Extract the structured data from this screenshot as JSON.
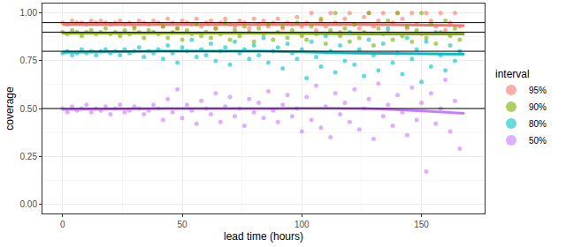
{
  "chart_data": {
    "type": "scatter",
    "xlabel": "lead time (hours)",
    "ylabel": "coverage",
    "legend_title": "interval",
    "legend": "right",
    "grid": true,
    "marker": "circle",
    "xlim": [
      -8.4,
      176.4
    ],
    "xticks": [
      0,
      50,
      100,
      150
    ],
    "ylim": [
      -0.05,
      1.05
    ],
    "yticks": [
      {
        "value": 0,
        "label": "0.00"
      },
      {
        "value": 0.25,
        "label": "0.25"
      },
      {
        "value": 0.5,
        "label": "0.50"
      },
      {
        "value": 0.75,
        "label": "0.75"
      },
      {
        "value": 1,
        "label": "1.00"
      }
    ],
    "hlines": [
      0.95,
      0.9,
      0.8,
      0.5
    ],
    "x": [
      0,
      2,
      4,
      6,
      8,
      10,
      12,
      14,
      16,
      18,
      20,
      22,
      24,
      26,
      28,
      30,
      32,
      34,
      36,
      38,
      40,
      42,
      44,
      46,
      48,
      50,
      52,
      54,
      56,
      58,
      60,
      62,
      64,
      66,
      68,
      70,
      72,
      74,
      76,
      78,
      80,
      82,
      84,
      86,
      88,
      90,
      92,
      94,
      96,
      98,
      100,
      102,
      104,
      106,
      108,
      110,
      112,
      114,
      116,
      118,
      120,
      122,
      124,
      126,
      128,
      130,
      132,
      134,
      136,
      138,
      140,
      142,
      144,
      146,
      148,
      150,
      152,
      154,
      156,
      158,
      160,
      162,
      164,
      166
    ],
    "smooth_x": [
      0,
      42,
      84,
      126,
      168
    ],
    "series": [
      {
        "name": "95%",
        "color": "#F8766D",
        "values": [
          0.95,
          0.94,
          0.96,
          0.95,
          0.95,
          0.94,
          0.96,
          0.95,
          0.96,
          0.95,
          0.94,
          0.95,
          0.96,
          0.94,
          0.95,
          0.93,
          0.96,
          0.95,
          0.94,
          0.96,
          0.95,
          0.93,
          0.97,
          0.95,
          0.92,
          0.96,
          0.95,
          0.94,
          0.97,
          0.93,
          0.95,
          0.96,
          0.92,
          0.95,
          0.97,
          0.94,
          0.93,
          0.96,
          0.95,
          0.92,
          0.97,
          0.94,
          0.96,
          0.93,
          0.95,
          0.97,
          0.92,
          0.95,
          0.94,
          0.98,
          0.93,
          0.95,
          1.0,
          0.91,
          0.96,
          0.93,
          1.0,
          0.95,
          0.9,
          0.97,
          1.0,
          0.94,
          0.92,
          0.98,
          1.0,
          0.93,
          0.96,
          1.0,
          0.9,
          0.95,
          1.0,
          0.97,
          0.92,
          1.0,
          0.94,
          0.89,
          1.0,
          0.96,
          0.93,
          1.0,
          0.91,
          0.95,
          1.0,
          0.93
        ],
        "smooth": [
          0.94,
          0.94,
          0.94,
          0.94,
          0.935
        ]
      },
      {
        "name": "90%",
        "color": "#7CAE00",
        "values": [
          0.9,
          0.89,
          0.91,
          0.9,
          0.88,
          0.9,
          0.91,
          0.89,
          0.9,
          0.92,
          0.89,
          0.9,
          0.88,
          0.91,
          0.89,
          0.92,
          0.9,
          0.87,
          0.91,
          0.9,
          0.89,
          0.93,
          0.87,
          0.9,
          0.92,
          0.86,
          0.91,
          0.89,
          0.94,
          0.88,
          0.9,
          0.87,
          0.92,
          0.89,
          0.95,
          0.86,
          0.91,
          0.88,
          0.93,
          0.9,
          0.85,
          0.92,
          0.89,
          0.94,
          0.86,
          0.9,
          0.93,
          0.87,
          0.91,
          0.95,
          0.88,
          0.86,
          0.93,
          0.89,
          0.97,
          0.84,
          0.91,
          1.0,
          0.88,
          0.92,
          0.85,
          0.94,
          0.87,
          0.9,
          1.0,
          0.83,
          0.92,
          0.89,
          0.96,
          0.86,
          1.0,
          0.88,
          0.93,
          0.85,
          0.91,
          1.0,
          0.87,
          0.94,
          0.84,
          0.9,
          0.96,
          0.88,
          0.92,
          0.86
        ],
        "smooth": [
          0.895,
          0.895,
          0.895,
          0.89,
          0.89
        ]
      },
      {
        "name": "80%",
        "color": "#00BFC4",
        "values": [
          0.79,
          0.8,
          0.78,
          0.79,
          0.81,
          0.79,
          0.8,
          0.78,
          0.8,
          0.81,
          0.79,
          0.8,
          0.78,
          0.81,
          0.79,
          0.8,
          0.82,
          0.77,
          0.8,
          0.79,
          0.81,
          0.76,
          0.83,
          0.79,
          0.74,
          0.82,
          0.8,
          0.86,
          0.77,
          0.81,
          0.78,
          0.84,
          0.75,
          0.8,
          0.82,
          0.73,
          0.85,
          0.79,
          0.81,
          0.76,
          0.83,
          0.78,
          0.87,
          0.74,
          0.8,
          0.82,
          0.71,
          0.84,
          0.79,
          0.76,
          0.81,
          0.66,
          0.85,
          0.77,
          0.72,
          0.88,
          0.8,
          0.69,
          0.83,
          0.75,
          0.9,
          0.73,
          0.81,
          0.67,
          0.86,
          0.78,
          0.7,
          0.84,
          0.92,
          0.74,
          0.79,
          0.68,
          0.87,
          0.76,
          0.81,
          0.64,
          0.85,
          0.72,
          0.9,
          0.78,
          0.7,
          0.83,
          0.75,
          0.8
        ],
        "smooth": [
          0.795,
          0.8,
          0.8,
          0.79,
          0.785
        ]
      },
      {
        "name": "50%",
        "color": "#C77CFF",
        "values": [
          0.5,
          0.48,
          0.51,
          0.49,
          0.5,
          0.52,
          0.48,
          0.5,
          0.49,
          0.51,
          0.47,
          0.5,
          0.52,
          0.48,
          0.49,
          0.51,
          0.5,
          0.47,
          0.49,
          0.52,
          0.5,
          0.44,
          0.55,
          0.48,
          0.6,
          0.45,
          0.52,
          0.49,
          0.42,
          0.54,
          0.5,
          0.47,
          0.58,
          0.43,
          0.51,
          0.56,
          0.46,
          0.5,
          0.41,
          0.55,
          0.48,
          0.53,
          0.45,
          0.59,
          0.49,
          0.43,
          0.52,
          0.57,
          0.46,
          0.5,
          0.38,
          0.56,
          0.44,
          0.62,
          0.4,
          0.51,
          0.35,
          0.58,
          0.47,
          0.53,
          0.43,
          0.6,
          0.39,
          0.5,
          0.55,
          0.34,
          0.63,
          0.46,
          0.52,
          0.41,
          0.57,
          0.48,
          0.36,
          0.61,
          0.44,
          0.53,
          0.17,
          0.58,
          0.42,
          0.5,
          0.65,
          0.38,
          0.54,
          0.29
        ],
        "smooth": [
          0.495,
          0.5,
          0.5,
          0.5,
          0.475
        ]
      }
    ]
  }
}
